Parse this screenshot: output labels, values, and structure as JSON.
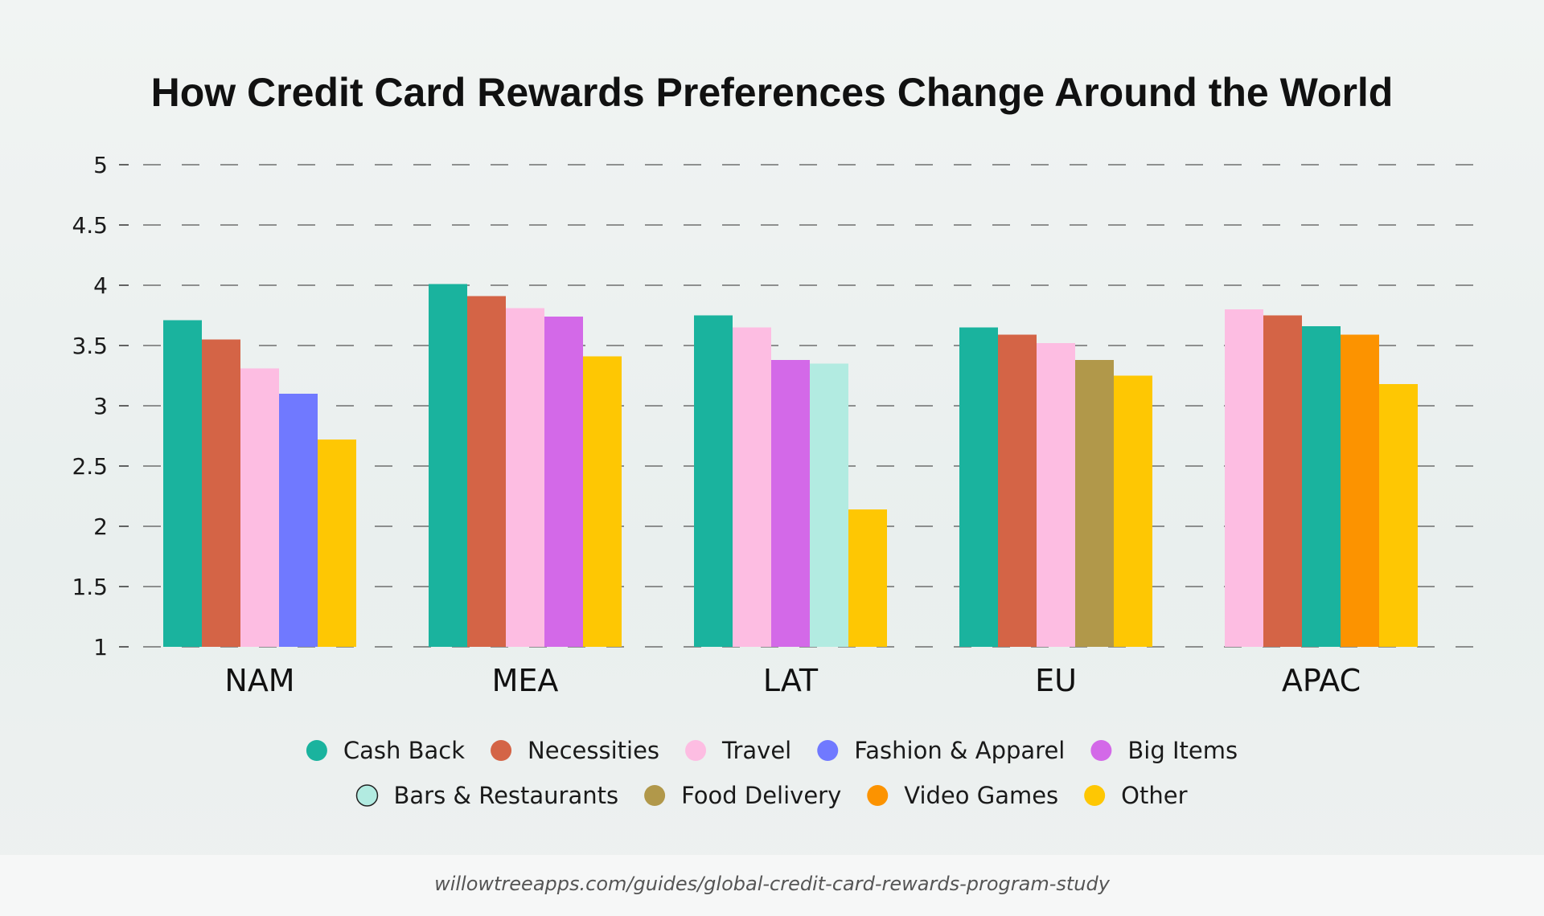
{
  "chart_data": {
    "type": "bar",
    "title": "How Credit Card Rewards Preferences Change Around the World",
    "ylim": [
      1,
      5
    ],
    "y_ticks": [
      "1",
      "1.5",
      "2",
      "2.5",
      "3",
      "3.5",
      "4",
      "4.5",
      "5"
    ],
    "grid": true,
    "legend_position": "bottom",
    "categories": [
      {
        "name": "NAM",
        "bars": [
          {
            "series": "Cash Back",
            "value": 3.71
          },
          {
            "series": "Necessities",
            "value": 3.55
          },
          {
            "series": "Travel",
            "value": 3.31
          },
          {
            "series": "Fashion & Apparel",
            "value": 3.1
          },
          {
            "series": "Other",
            "value": 2.72
          }
        ]
      },
      {
        "name": "MEA",
        "bars": [
          {
            "series": "Cash Back",
            "value": 4.01
          },
          {
            "series": "Necessities",
            "value": 3.91
          },
          {
            "series": "Travel",
            "value": 3.81
          },
          {
            "series": "Big Items",
            "value": 3.74
          },
          {
            "series": "Other",
            "value": 3.41
          }
        ]
      },
      {
        "name": "LAT",
        "bars": [
          {
            "series": "Cash Back",
            "value": 3.75
          },
          {
            "series": "Travel",
            "value": 3.65
          },
          {
            "series": "Big Items",
            "value": 3.38
          },
          {
            "series": "Bars & Restaurants",
            "value": 3.35
          },
          {
            "series": "Other",
            "value": 2.14
          }
        ]
      },
      {
        "name": "EU",
        "bars": [
          {
            "series": "Cash Back",
            "value": 3.65
          },
          {
            "series": "Necessities",
            "value": 3.59
          },
          {
            "series": "Travel",
            "value": 3.52
          },
          {
            "series": "Food Delivery",
            "value": 3.38
          },
          {
            "series": "Other",
            "value": 3.25
          }
        ]
      },
      {
        "name": "APAC",
        "bars": [
          {
            "series": "Travel",
            "value": 3.8
          },
          {
            "series": "Necessities",
            "value": 3.75
          },
          {
            "series": "Cash Back",
            "value": 3.66
          },
          {
            "series": "Video Games",
            "value": 3.59
          },
          {
            "series": "Other",
            "value": 3.18
          }
        ]
      }
    ],
    "series": [
      {
        "name": "Cash Back",
        "color": "#1ab39e"
      },
      {
        "name": "Necessities",
        "color": "#d46446"
      },
      {
        "name": "Travel",
        "color": "#fdbde2"
      },
      {
        "name": "Fashion & Apparel",
        "color": "#7079ff"
      },
      {
        "name": "Big Items",
        "color": "#d369e8"
      },
      {
        "name": "Bars & Restaurants",
        "color": "#b2ebe1"
      },
      {
        "name": "Food Delivery",
        "color": "#b1984a"
      },
      {
        "name": "Video Games",
        "color": "#fc9300"
      },
      {
        "name": "Other",
        "color": "#fec703"
      }
    ],
    "legend_rows": [
      [
        "Cash Back",
        "Necessities",
        "Travel",
        "Fashion & Apparel",
        "Big Items"
      ],
      [
        "Bars & Restaurants",
        "Food Delivery",
        "Video Games",
        "Other"
      ]
    ]
  },
  "footer": {
    "source_url": "willowtreeapps.com/guides/global-credit-card-rewards-program-study"
  }
}
